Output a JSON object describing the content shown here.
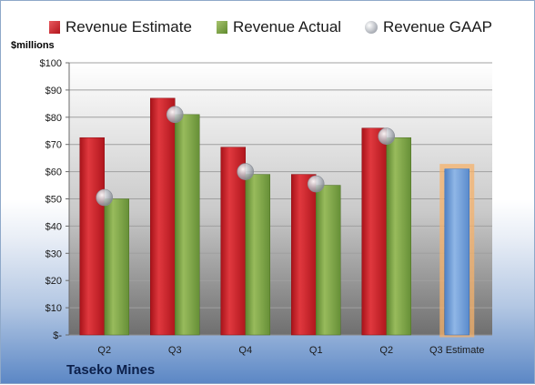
{
  "chart_data": {
    "type": "bar",
    "categories": [
      "Q2",
      "Q3",
      "Q4",
      "Q1",
      "Q2",
      "Q3 Estimate"
    ],
    "series": [
      {
        "name": "Revenue Estimate",
        "values": [
          72.5,
          87,
          69,
          59,
          76,
          null
        ],
        "color": "#cc1f26"
      },
      {
        "name": "Revenue Actual",
        "values": [
          50,
          81,
          59,
          55,
          72.5,
          null
        ],
        "color": "#7ea042"
      },
      {
        "name": "Revenue GAAP",
        "values": [
          50.5,
          81,
          60,
          55.5,
          73,
          null
        ],
        "color": "#b8bcc4"
      },
      {
        "name": "",
        "values": [
          null,
          null,
          null,
          null,
          null,
          61
        ],
        "color": "#6f9fd8",
        "highlight": "#f6b26b"
      }
    ],
    "ylabel": "$millions",
    "ylim": [
      0,
      100
    ],
    "yticks": [
      "$-",
      "$10",
      "$20",
      "$30",
      "$40",
      "$50",
      "$60",
      "$70",
      "$80",
      "$90",
      "$100"
    ],
    "grid": true,
    "legend": "top"
  },
  "footer": {
    "company": "Taseko Mines"
  }
}
